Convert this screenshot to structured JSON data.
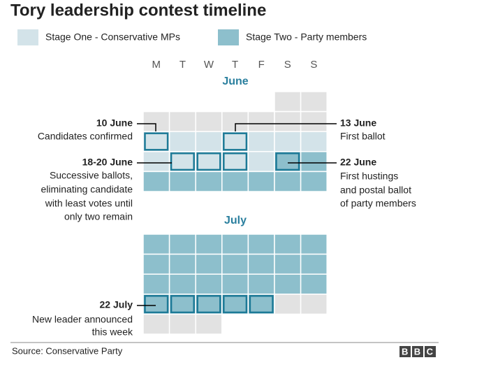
{
  "header": {
    "title": "Tory leadership contest timeline"
  },
  "legend": [
    {
      "label": "Stage One - Conservative MPs"
    },
    {
      "label": "Stage Two - Party members"
    }
  ],
  "calendar": {
    "weekdays": [
      "M",
      "T",
      "W",
      "T",
      "F",
      "S",
      "S"
    ],
    "months": [
      "June",
      "July"
    ]
  },
  "annotations": [
    {
      "title": "10 June",
      "text": [
        "Candidates confirmed"
      ]
    },
    {
      "title": "13 June",
      "text": [
        "First ballot"
      ]
    },
    {
      "title": "18-20 June",
      "text": [
        "Successive ballots,",
        "eliminating candidate",
        "with least votes until",
        "only two remain"
      ]
    },
    {
      "title": "22 June",
      "text": [
        "First hustings",
        "and postal ballot",
        "of party members"
      ]
    },
    {
      "title": "22 July",
      "text": [
        "New leader announced",
        "this week"
      ]
    }
  ],
  "footer": {
    "source": "Source: Conservative Party",
    "logo": "BBC"
  }
}
